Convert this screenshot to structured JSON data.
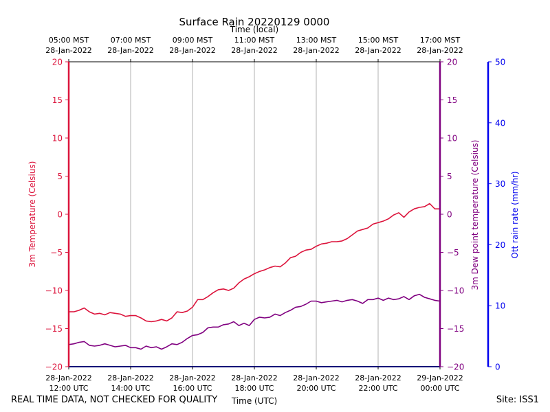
{
  "chart_data": {
    "type": "line",
    "title": "Surface Rain 20220129 0000",
    "xlabel": "Time (UTC)",
    "top_xlabel": "Time (local)",
    "x_ticks_utc": [
      [
        "28-Jan-2022",
        "12:00 UTC"
      ],
      [
        "28-Jan-2022",
        "14:00 UTC"
      ],
      [
        "28-Jan-2022",
        "16:00 UTC"
      ],
      [
        "28-Jan-2022",
        "18:00 UTC"
      ],
      [
        "28-Jan-2022",
        "20:00 UTC"
      ],
      [
        "28-Jan-2022",
        "22:00 UTC"
      ],
      [
        "29-Jan-2022",
        "00:00 UTC"
      ]
    ],
    "x_ticks_local": [
      [
        "05:00 MST",
        "28-Jan-2022"
      ],
      [
        "07:00 MST",
        "28-Jan-2022"
      ],
      [
        "09:00 MST",
        "28-Jan-2022"
      ],
      [
        "11:00 MST",
        "28-Jan-2022"
      ],
      [
        "13:00 MST",
        "28-Jan-2022"
      ],
      [
        "15:00 MST",
        "28-Jan-2022"
      ],
      [
        "17:00 MST",
        "28-Jan-2022"
      ]
    ],
    "xlim": [
      "2022-01-28 12:00 UTC",
      "2022-01-29 00:00 UTC"
    ],
    "grid": "vertical",
    "axes": [
      {
        "label": "3m Temperature (Celsius)",
        "side": "left",
        "ylim": [
          -20,
          20
        ],
        "ticks": [
          -20,
          -15,
          -10,
          -5,
          0,
          5,
          10,
          15,
          20
        ],
        "color": "#dc143c"
      },
      {
        "label": "3m Dew point temperature (Celsius)",
        "side": "right",
        "ylim": [
          -20,
          20
        ],
        "ticks": [
          -20,
          -15,
          -10,
          -5,
          0,
          5,
          10,
          15,
          20
        ],
        "color": "#800080"
      },
      {
        "label": "Ott rain rate (mm/hr)",
        "side": "right-outer",
        "ylim": [
          0,
          50
        ],
        "ticks": [
          0,
          10,
          20,
          30,
          40,
          50
        ],
        "color": "#0000ee"
      }
    ],
    "x": [
      "12:00",
      "12:10",
      "12:20",
      "12:30",
      "12:40",
      "12:50",
      "13:00",
      "13:10",
      "13:20",
      "13:30",
      "13:40",
      "13:50",
      "14:00",
      "14:10",
      "14:20",
      "14:30",
      "14:40",
      "14:50",
      "15:00",
      "15:10",
      "15:20",
      "15:30",
      "15:40",
      "15:50",
      "16:00",
      "16:10",
      "16:20",
      "16:30",
      "16:40",
      "16:50",
      "17:00",
      "17:10",
      "17:20",
      "17:30",
      "17:40",
      "17:50",
      "18:00",
      "18:10",
      "18:20",
      "18:30",
      "18:40",
      "18:50",
      "19:00",
      "19:10",
      "19:20",
      "19:30",
      "19:40",
      "19:50",
      "20:00",
      "20:10",
      "20:20",
      "20:30",
      "20:40",
      "20:50",
      "21:00",
      "21:10",
      "21:20",
      "21:30",
      "21:40",
      "21:50",
      "22:00",
      "22:10",
      "22:20",
      "22:30",
      "22:40",
      "22:50",
      "23:00",
      "23:10",
      "23:20",
      "23:30",
      "23:40",
      "23:50",
      "00:00"
    ],
    "series": [
      {
        "axis": 0,
        "color": "#dc143c",
        "values": [
          -12.8,
          -12.8,
          -12.6,
          -12.3,
          -12.8,
          -13.1,
          -13.0,
          -13.2,
          -12.9,
          -13.0,
          -13.1,
          -13.4,
          -13.3,
          -13.3,
          -13.6,
          -14.0,
          -14.1,
          -14.0,
          -13.8,
          -14.0,
          -13.6,
          -12.8,
          -12.9,
          -12.7,
          -12.2,
          -11.2,
          -11.2,
          -10.8,
          -10.3,
          -9.9,
          -9.8,
          -10.0,
          -9.7,
          -9.0,
          -8.5,
          -8.2,
          -7.8,
          -7.5,
          -7.3,
          -7.0,
          -6.8,
          -6.9,
          -6.4,
          -5.7,
          -5.5,
          -5.0,
          -4.7,
          -4.6,
          -4.2,
          -3.9,
          -3.8,
          -3.6,
          -3.6,
          -3.5,
          -3.2,
          -2.7,
          -2.2,
          -2.0,
          -1.8,
          -1.3,
          -1.1,
          -0.9,
          -0.6,
          -0.1,
          0.2,
          -0.4,
          0.3,
          0.7,
          0.9,
          1.0,
          1.4,
          0.7,
          0.7
        ]
      },
      {
        "axis": 1,
        "color": "#800080",
        "values": [
          -17.1,
          -17.0,
          -16.8,
          -16.7,
          -17.2,
          -17.3,
          -17.2,
          -17.0,
          -17.2,
          -17.4,
          -17.3,
          -17.2,
          -17.5,
          -17.5,
          -17.7,
          -17.3,
          -17.5,
          -17.4,
          -17.7,
          -17.4,
          -17.0,
          -17.1,
          -16.8,
          -16.3,
          -15.9,
          -15.8,
          -15.5,
          -14.9,
          -14.8,
          -14.8,
          -14.5,
          -14.4,
          -14.1,
          -14.6,
          -14.3,
          -14.6,
          -13.8,
          -13.5,
          -13.6,
          -13.5,
          -13.1,
          -13.3,
          -12.9,
          -12.6,
          -12.2,
          -12.1,
          -11.8,
          -11.4,
          -11.4,
          -11.6,
          -11.5,
          -11.4,
          -11.3,
          -11.5,
          -11.3,
          -11.2,
          -11.4,
          -11.7,
          -11.2,
          -11.2,
          -11.0,
          -11.3,
          -11.0,
          -11.2,
          -11.1,
          -10.8,
          -11.2,
          -10.7,
          -10.5,
          -10.9,
          -11.1,
          -11.3,
          -11.4
        ]
      },
      {
        "axis": 2,
        "color": "#0000ee",
        "values": [
          0,
          0,
          0,
          0,
          0,
          0,
          0,
          0,
          0,
          0,
          0,
          0,
          0,
          0,
          0,
          0,
          0,
          0,
          0,
          0,
          0,
          0,
          0,
          0,
          0,
          0,
          0,
          0,
          0,
          0,
          0,
          0,
          0,
          0,
          0,
          0,
          0,
          0,
          0,
          0,
          0,
          0,
          0,
          0,
          0,
          0,
          0,
          0,
          0,
          0,
          0,
          0,
          0,
          0,
          0,
          0,
          0,
          0,
          0,
          0,
          0,
          0,
          0,
          0,
          0,
          0,
          0,
          0,
          0,
          0,
          0,
          0,
          0
        ]
      }
    ]
  },
  "footer": {
    "left": "REAL TIME DATA, NOT CHECKED FOR QUALITY",
    "right": "Site: ISS1"
  }
}
